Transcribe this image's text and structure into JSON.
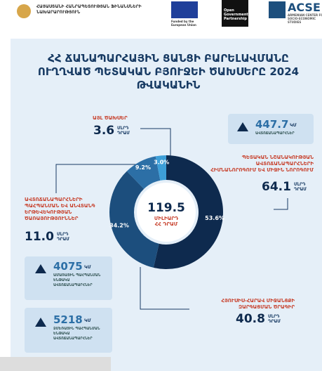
{
  "header": {
    "ministry": "ՀԱՅԱՍՏԱՆԻ ՀԱՆՐԱՊԵՏՈՒԹՅԱՆ ՖԻՆԱՆՍՆԵՐԻ ՆԱԽԱՐԱՐՈՒԹՅՈՒՆ",
    "eu": "Funded by the European Union",
    "ogp": "Open Government Partnership",
    "acse": "ACSE",
    "acse_sub": "ARMENIAN CENTER FOR SOCIO-ECONOMIC STUDIES"
  },
  "chart_data": {
    "type": "pie",
    "title": "ՀՀ ՃԱՆԱՊԱՐՀԱՅԻՆ ՑԱՆՑԻ ԲԱՐԵԼԱՎՄԱՆԸ ՈՒՂՂՎԱԾ ՊԵՏԱԿԱՆ ԲՅՈՒՋԵԻ ԾԱԽՍԵՐԸ 2024 ԹՎԱԿԱՆԻՆ",
    "center_value": "119.5",
    "center_unit": [
      "ՄԻԼԻԱՐԴ",
      "ՀՀ ԴՐԱՄ"
    ],
    "categories": [
      "ՊԵՏԱԿԱՆ ՆՇԱՆԱԿՈՒԹՅԱՆ ԱՎՏՈՃԱՆԱՊԱՐՀՆԵՐԻ ՀԻՄՆԱՆՈՐՈԳՈՒՄ ԵՎ ՄԻՋԻՆ ՆՈՐՈԳՈՒՄ",
      "ՀՅՈՒՍԻՍ-ՀԱՐԱՎ ՄԻՋԱՆՑՔԻ ԶԱՐԳԱՑՄԱՆ ԾՐԱԳԻՐ",
      "ԱՎՏՈՃԱՆԱՊԱՐՀՆԵՐԻ ՊԱՀՊԱՆՄԱՆ ԵՎ ԱՆՎՏԱՆԳ ԵՐԹԵՎԵԿՈՒԹՅԱՆ ԾԱՌԱՅՈՒԹՅՈՒՆՆԵՐ",
      "ԱՅԼ ԾԱԽՍԵՐ"
    ],
    "values": [
      53.6,
      34.2,
      9.2,
      3.0
    ],
    "value_labels": [
      "53.6%",
      "34.2%",
      "9.2%",
      "3.0%"
    ],
    "colors": [
      "#0e2a4e",
      "#1c4e7d",
      "#2c6fa6",
      "#3d9fd8"
    ],
    "amounts": [
      "64.1",
      "40.8",
      "11.0",
      "3.6"
    ],
    "amount_unit": [
      "ՄԼՐԴ",
      "ԴՐԱՄ"
    ]
  },
  "stats": [
    {
      "value": "447.7",
      "unit": "ԿՄ",
      "label": "ԱՎՏՈՃԱՆԱՊԱՐՀՆԵՐ"
    },
    {
      "value": "4075",
      "unit": "ԿՄ",
      "label": "ԱՄԱՌԱՅԻՆ ՊԱՀՊԱՆՄԱՆ ԵՆԹԱԿԱ ԱՎՏՈՃԱՆԱՊԱՐՀՆԵՐ"
    },
    {
      "value": "5218",
      "unit": "ԿՄ",
      "label": "ՁՄԵՌԱՅԻՆ ՊԱՀՊԱՆՄԱՆ ԵՆԹԱԿԱ ԱՎՏՈՃԱՆԱՊԱՐՀՆԵՐ"
    }
  ]
}
